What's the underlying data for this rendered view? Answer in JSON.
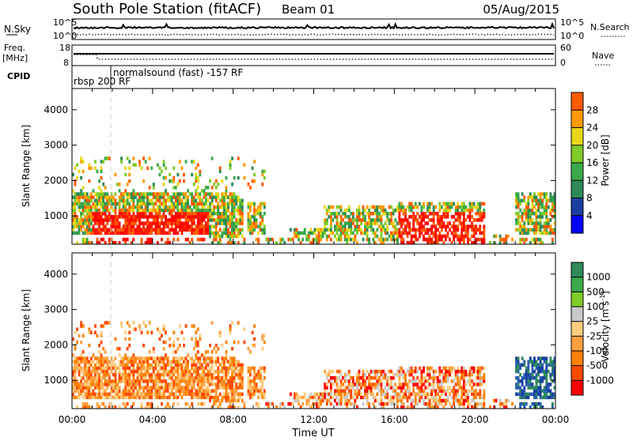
{
  "header": {
    "title": "South Pole Station (fitACF)",
    "beam": "Beam 01",
    "date": "05/Aug/2015"
  },
  "top_panels": {
    "nsky_label": "N.Sky",
    "nsky_ticks": [
      "10^5",
      "10^0"
    ],
    "nsearch_label": "N.Search",
    "freq_label": "Freq.",
    "freq_unit": "[MHz]",
    "freq_ticks": [
      "18",
      "8"
    ],
    "nave_ticks": [
      "60",
      "0"
    ],
    "nave_label": "Nave",
    "cpid_label": "CPID",
    "cpid_rbsp": "rbsp 200 RF",
    "cpid_normal": "normalsound (fast) -157 RF"
  },
  "colors": {
    "frame": "#000000",
    "power_scale": [
      "#0000ff",
      "#1a3fa0",
      "#2e8b57",
      "#3aaa4a",
      "#7fcc2a",
      "#e8d81a",
      "#ff9a00",
      "#ff5a00",
      "#ff1800",
      "#ff0000"
    ],
    "velocity_scale": [
      "#ff0000",
      "#ff4a00",
      "#ff8000",
      "#ffa040",
      "#ffcc80",
      "#c8c8c8",
      "#7fcc2a",
      "#3aaa4a",
      "#2e8b57",
      "#2a5fb0",
      "#1a3fa0"
    ]
  },
  "chart_data": [
    {
      "type": "heatmap",
      "name": "power-panel",
      "ylabel": "Slant Range [km]",
      "x_ticks": [
        "00:00",
        "04:00",
        "08:00",
        "12:00",
        "16:00",
        "20:00",
        "00:00"
      ],
      "y_ticks": [
        "1000",
        "2000",
        "3000",
        "4000"
      ],
      "ylim": [
        200,
        4600
      ],
      "xlim_hours": [
        0,
        24
      ],
      "colorbar": {
        "label": "Power [dB]",
        "ticks": [
          "4",
          "8",
          "12",
          "16",
          "20",
          "24",
          "28"
        ]
      },
      "echo_regions_hours": [
        [
          0.1,
          6.8
        ],
        [
          6.8,
          8.5
        ],
        [
          8.7,
          9.6
        ],
        [
          10.8,
          12.5
        ],
        [
          12.5,
          16.2
        ],
        [
          16.2,
          20.5
        ],
        [
          20.5,
          21.8
        ],
        [
          22.0,
          24.0
        ]
      ],
      "grid": false
    },
    {
      "type": "heatmap",
      "name": "velocity-panel",
      "ylabel": "Slant Range [km]",
      "xlabel": "Time UT",
      "x_ticks": [
        "00:00",
        "04:00",
        "08:00",
        "12:00",
        "16:00",
        "20:00",
        "00:00"
      ],
      "y_ticks": [
        "1000",
        "2000",
        "3000",
        "4000"
      ],
      "ylim": [
        200,
        4600
      ],
      "xlim_hours": [
        0,
        24
      ],
      "colorbar": {
        "label": "Velocity [m s^-1]",
        "ticks": [
          "1000",
          "500",
          "100",
          "25",
          "-25",
          "-100",
          "-500",
          "-1000"
        ]
      },
      "grid": false
    }
  ]
}
